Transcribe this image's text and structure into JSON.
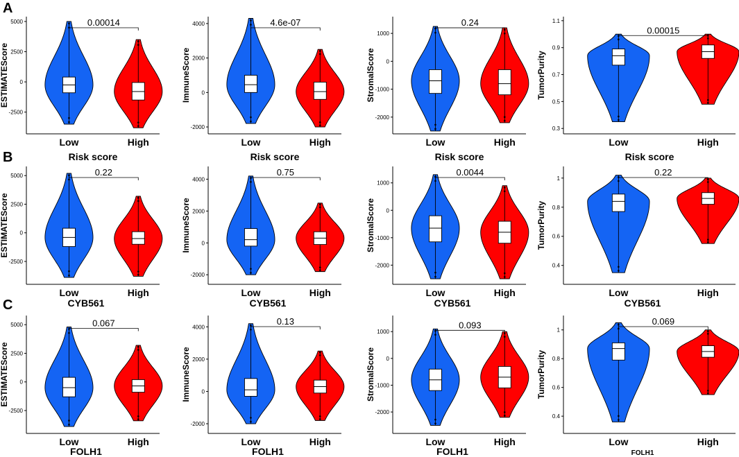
{
  "figure": {
    "panel_labels": [
      "A",
      "B",
      "C"
    ],
    "group_colors": {
      "Low": "#1464F4",
      "High": "#FF0000"
    }
  },
  "chart_data": [
    {
      "id": "A1",
      "type": "violin",
      "panel": "A",
      "ylabel": "ESTIMATEScore",
      "xlabel": "Risk score",
      "categories": [
        "Low",
        "High"
      ],
      "yticks": [
        -2500,
        0,
        2500,
        5000
      ],
      "ylim": [
        -4300,
        5400
      ],
      "pvalue": "0.00014",
      "groups": [
        {
          "name": "Low",
          "color": "#1464F4",
          "median": -250,
          "q1": -900,
          "q3": 400,
          "min": -3500,
          "max": 5000
        },
        {
          "name": "High",
          "color": "#FF0000",
          "median": -800,
          "q1": -1500,
          "q3": -50,
          "min": -3800,
          "max": 3500
        }
      ]
    },
    {
      "id": "A2",
      "type": "violin",
      "panel": "A",
      "ylabel": "ImmuneScore",
      "xlabel": "Risk score",
      "categories": [
        "Low",
        "High"
      ],
      "yticks": [
        -2000,
        0,
        2000,
        4000
      ],
      "ylim": [
        -2400,
        4400
      ],
      "pvalue": "4.6e-07",
      "groups": [
        {
          "name": "Low",
          "color": "#1464F4",
          "median": 450,
          "q1": 0,
          "q3": 1000,
          "min": -1800,
          "max": 4300
        },
        {
          "name": "High",
          "color": "#FF0000",
          "median": 50,
          "q1": -400,
          "q3": 600,
          "min": -2000,
          "max": 2500
        }
      ]
    },
    {
      "id": "A3",
      "type": "violin",
      "panel": "A",
      "ylabel": "StromalScore",
      "xlabel": "Risk score",
      "categories": [
        "Low",
        "High"
      ],
      "yticks": [
        -2000,
        -1000,
        0,
        1000
      ],
      "ylim": [
        -2600,
        1600
      ],
      "pvalue": "0.24",
      "groups": [
        {
          "name": "Low",
          "color": "#1464F4",
          "median": -700,
          "q1": -1150,
          "q3": -300,
          "min": -2500,
          "max": 1250
        },
        {
          "name": "High",
          "color": "#FF0000",
          "median": -800,
          "q1": -1200,
          "q3": -300,
          "min": -2200,
          "max": 1200
        }
      ]
    },
    {
      "id": "A4",
      "type": "violin",
      "panel": "A",
      "ylabel": "TumorPurity",
      "xlabel": "Risk score",
      "categories": [
        "Low",
        "High"
      ],
      "yticks": [
        0.3,
        0.5,
        0.7,
        0.9,
        1.1
      ],
      "ylim": [
        0.26,
        1.13
      ],
      "pvalue": "0.00015",
      "groups": [
        {
          "name": "Low",
          "color": "#1464F4",
          "median": 0.84,
          "q1": 0.77,
          "q3": 0.89,
          "min": 0.35,
          "max": 1.0
        },
        {
          "name": "High",
          "color": "#FF0000",
          "median": 0.87,
          "q1": 0.82,
          "q3": 0.92,
          "min": 0.48,
          "max": 1.0
        }
      ]
    },
    {
      "id": "B1",
      "type": "violin",
      "panel": "B",
      "ylabel": "ESTIMATEScore",
      "xlabel": "CYB561",
      "categories": [
        "Low",
        "High"
      ],
      "yticks": [
        -2500,
        0,
        2500,
        5000
      ],
      "ylim": [
        -4500,
        5800
      ],
      "pvalue": "0.22",
      "groups": [
        {
          "name": "Low",
          "color": "#1464F4",
          "median": -400,
          "q1": -1200,
          "q3": 400,
          "min": -3900,
          "max": 5200
        },
        {
          "name": "High",
          "color": "#FF0000",
          "median": -500,
          "q1": -1000,
          "q3": 100,
          "min": -3800,
          "max": 3200
        }
      ]
    },
    {
      "id": "B2",
      "type": "violin",
      "panel": "B",
      "ylabel": "ImmuneScore",
      "xlabel": "CYB561",
      "categories": [
        "Low",
        "High"
      ],
      "yticks": [
        -2000,
        0,
        2000,
        4000
      ],
      "ylim": [
        -2600,
        4800
      ],
      "pvalue": "0.75",
      "groups": [
        {
          "name": "Low",
          "color": "#1464F4",
          "median": 200,
          "q1": -200,
          "q3": 900,
          "min": -2000,
          "max": 4200
        },
        {
          "name": "High",
          "color": "#FF0000",
          "median": 300,
          "q1": -100,
          "q3": 700,
          "min": -1800,
          "max": 2500
        }
      ]
    },
    {
      "id": "B3",
      "type": "violin",
      "panel": "B",
      "ylabel": "StromalScore",
      "xlabel": "CYB561",
      "categories": [
        "Low",
        "High"
      ],
      "yticks": [
        -2000,
        -1000,
        0,
        1000
      ],
      "ylim": [
        -2700,
        1600
      ],
      "pvalue": "0.0044",
      "groups": [
        {
          "name": "Low",
          "color": "#1464F4",
          "median": -650,
          "q1": -1150,
          "q3": -200,
          "min": -2500,
          "max": 1300
        },
        {
          "name": "High",
          "color": "#FF0000",
          "median": -800,
          "q1": -1200,
          "q3": -400,
          "min": -2500,
          "max": 900
        }
      ]
    },
    {
      "id": "B4",
      "type": "violin",
      "panel": "B",
      "ylabel": "TumorPurity",
      "xlabel": "CYB561",
      "categories": [
        "Low",
        "High"
      ],
      "yticks": [
        0.4,
        0.6,
        0.8,
        1.0
      ],
      "ylim": [
        0.27,
        1.08
      ],
      "pvalue": "0.22",
      "groups": [
        {
          "name": "Low",
          "color": "#1464F4",
          "median": 0.84,
          "q1": 0.77,
          "q3": 0.89,
          "min": 0.35,
          "max": 1.02
        },
        {
          "name": "High",
          "color": "#FF0000",
          "median": 0.86,
          "q1": 0.82,
          "q3": 0.9,
          "min": 0.55,
          "max": 1.0
        }
      ]
    },
    {
      "id": "C1",
      "type": "violin",
      "panel": "C",
      "ylabel": "ESTIMATEScore",
      "xlabel": "FOLH1",
      "categories": [
        "Low",
        "High"
      ],
      "yticks": [
        -2500,
        0,
        2500,
        5000
      ],
      "ylim": [
        -4500,
        5800
      ],
      "pvalue": "0.067",
      "groups": [
        {
          "name": "Low",
          "color": "#1464F4",
          "median": -500,
          "q1": -1300,
          "q3": 400,
          "min": -3900,
          "max": 4800
        },
        {
          "name": "High",
          "color": "#FF0000",
          "median": -350,
          "q1": -900,
          "q3": 200,
          "min": -3400,
          "max": 3200
        }
      ]
    },
    {
      "id": "C2",
      "type": "violin",
      "panel": "C",
      "ylabel": "ImmuneScore",
      "xlabel": "FOLH1",
      "categories": [
        "Low",
        "High"
      ],
      "yticks": [
        -2000,
        0,
        2000,
        4000
      ],
      "ylim": [
        -2600,
        4700
      ],
      "pvalue": "0.13",
      "groups": [
        {
          "name": "Low",
          "color": "#1464F4",
          "median": 100,
          "q1": -300,
          "q3": 800,
          "min": -2000,
          "max": 4200
        },
        {
          "name": "High",
          "color": "#FF0000",
          "median": 300,
          "q1": -100,
          "q3": 700,
          "min": -1800,
          "max": 2500
        }
      ]
    },
    {
      "id": "C3",
      "type": "violin",
      "panel": "C",
      "ylabel": "StromalScore",
      "xlabel": "FOLH1",
      "categories": [
        "Low",
        "High"
      ],
      "yticks": [
        -2000,
        -1000,
        0,
        1000
      ],
      "ylim": [
        -2800,
        1600
      ],
      "pvalue": "0.093",
      "groups": [
        {
          "name": "Low",
          "color": "#1464F4",
          "median": -800,
          "q1": -1200,
          "q3": -400,
          "min": -2500,
          "max": 1100
        },
        {
          "name": "High",
          "color": "#FF0000",
          "median": -700,
          "q1": -1100,
          "q3": -300,
          "min": -2200,
          "max": 1000
        }
      ]
    },
    {
      "id": "C4",
      "type": "violin",
      "panel": "C",
      "ylabel": "TumorPurity",
      "xlabel": "FOLH1",
      "categories": [
        "Low",
        "High"
      ],
      "yticks": [
        0.4,
        0.6,
        0.8,
        1.0
      ],
      "ylim": [
        0.28,
        1.1
      ],
      "pvalue": "0.069",
      "groups": [
        {
          "name": "Low",
          "color": "#1464F4",
          "median": 0.87,
          "q1": 0.79,
          "q3": 0.91,
          "min": 0.36,
          "max": 1.05
        },
        {
          "name": "High",
          "color": "#FF0000",
          "median": 0.85,
          "q1": 0.81,
          "q3": 0.89,
          "min": 0.55,
          "max": 1.0
        }
      ]
    }
  ]
}
